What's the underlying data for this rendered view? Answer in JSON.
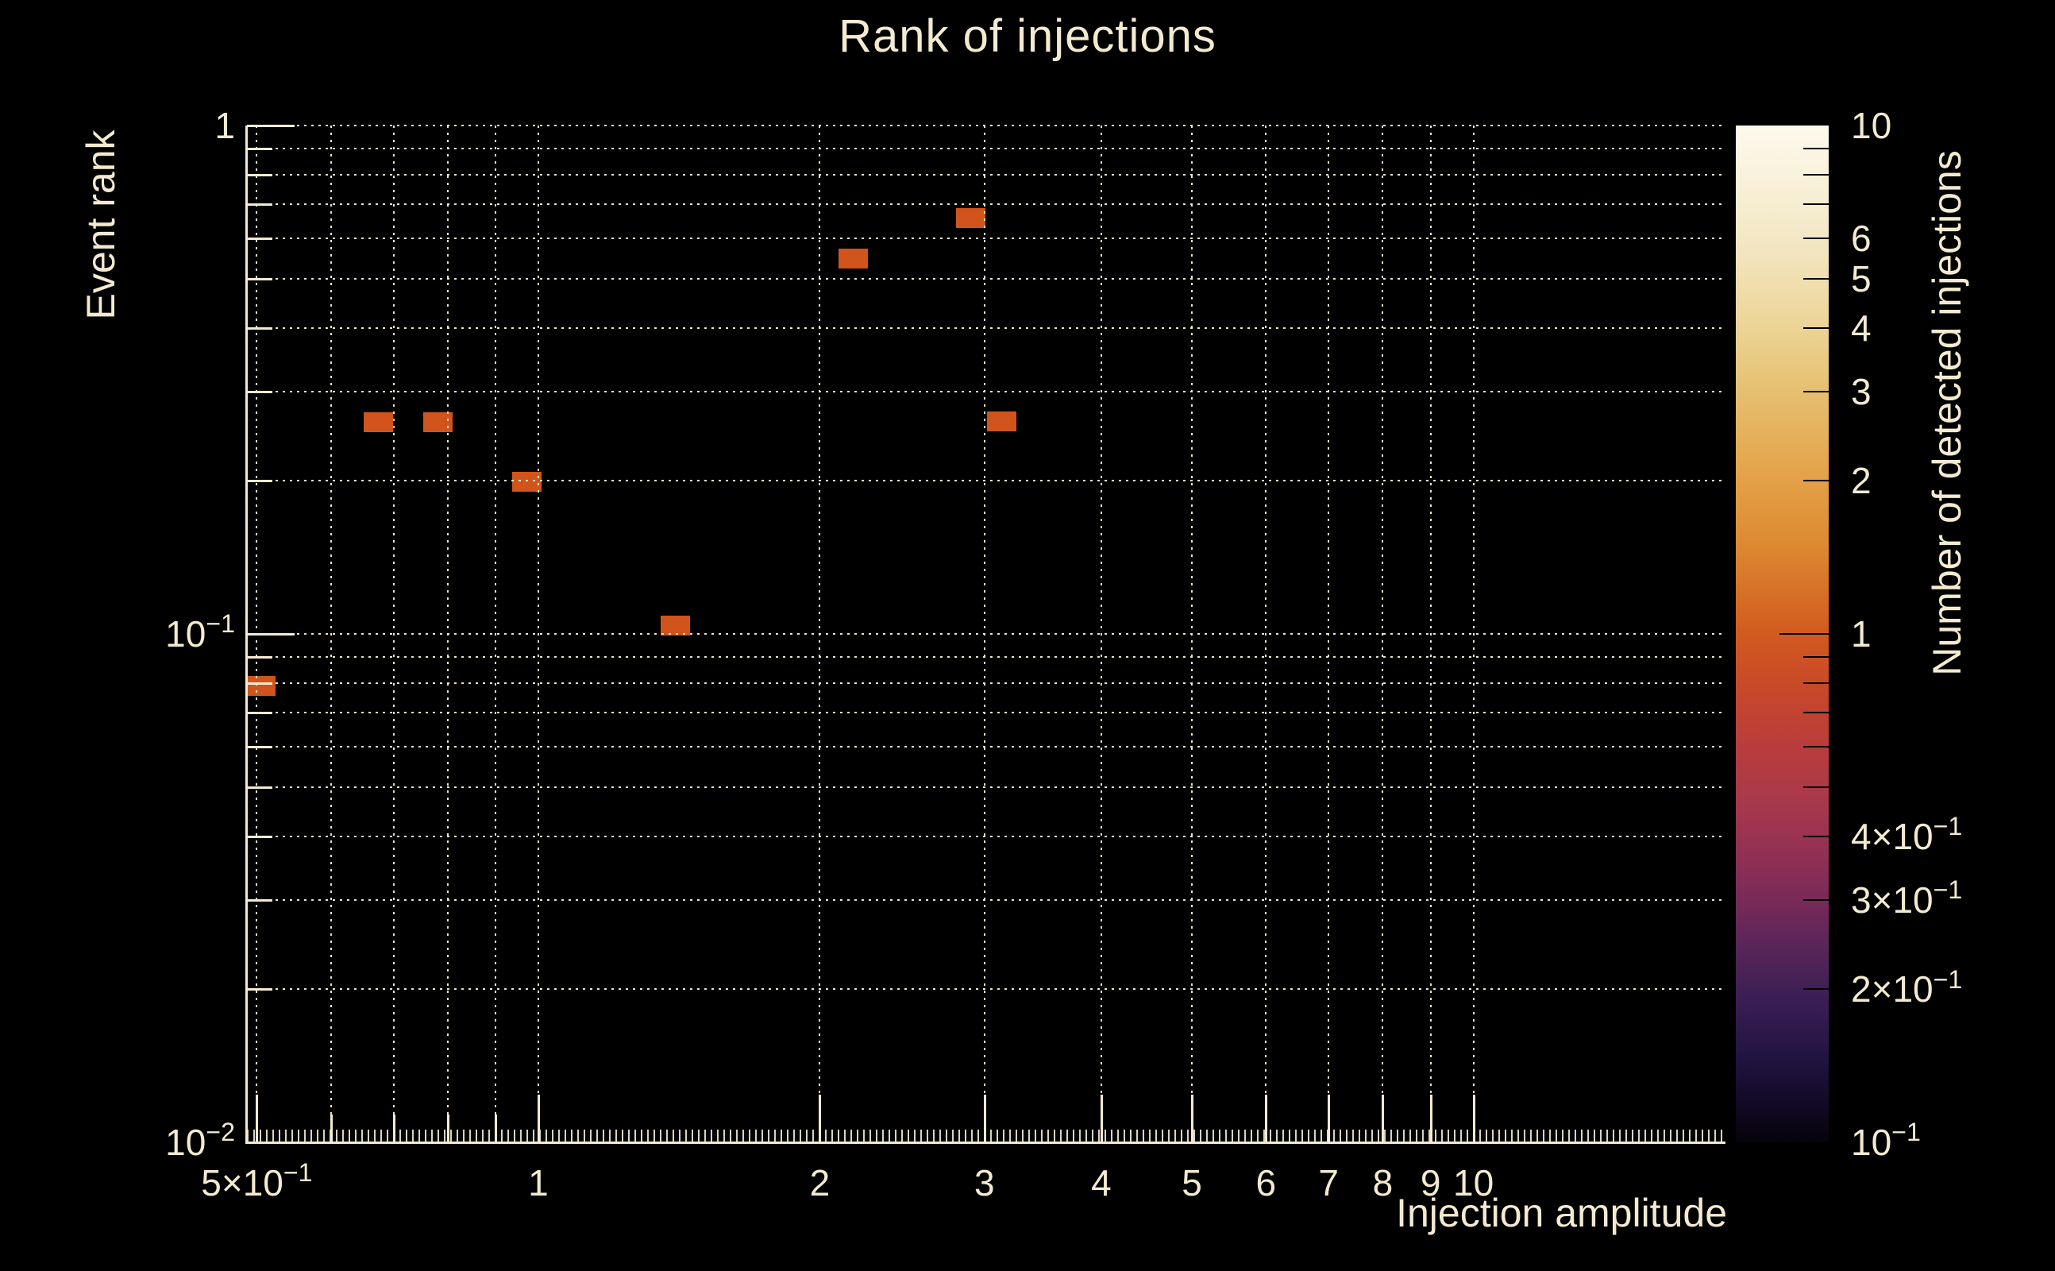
{
  "title": "Rank of injections",
  "colors": {
    "background": "#000000",
    "text": "#f3ead0",
    "grid": "#ece3c8",
    "bin": "#d0541b"
  },
  "chart_data": {
    "type": "heatmap",
    "title": "Rank of injections",
    "xlabel": "Injection amplitude",
    "ylabel": "Event rank",
    "x_scale": "log",
    "y_scale": "log",
    "xlim": [
      0.488,
      18.6
    ],
    "ylim": [
      0.01,
      1
    ],
    "grid": "dotted",
    "x_ticks": [
      {
        "v": 0.5,
        "label": "5×10⁻¹"
      },
      {
        "v": 1,
        "label": "1"
      },
      {
        "v": 2,
        "label": "2"
      },
      {
        "v": 3,
        "label": "3"
      },
      {
        "v": 4,
        "label": "4"
      },
      {
        "v": 5,
        "label": "5"
      },
      {
        "v": 6,
        "label": "6"
      },
      {
        "v": 7,
        "label": "7"
      },
      {
        "v": 8,
        "label": "8"
      },
      {
        "v": 9,
        "label": "9"
      },
      {
        "v": 10,
        "label": "10"
      }
    ],
    "x_minor_ticks": [
      0.6,
      0.7,
      0.8,
      0.9
    ],
    "x_gridlines": [
      0.5,
      0.6,
      0.7,
      0.8,
      0.9,
      1,
      2,
      3,
      4,
      5,
      6,
      7,
      8,
      9,
      10
    ],
    "y_ticks": [
      {
        "v": 1,
        "label": "1"
      },
      {
        "v": 0.1,
        "label": "10⁻¹"
      },
      {
        "v": 0.01,
        "label": "10⁻²"
      }
    ],
    "y_minor_ticks": [
      0.9,
      0.8,
      0.7,
      0.6,
      0.5,
      0.4,
      0.3,
      0.2,
      0.09,
      0.08,
      0.07,
      0.06,
      0.05,
      0.04,
      0.03,
      0.02
    ],
    "y_gridlines": [
      1,
      0.9,
      0.8,
      0.7,
      0.6,
      0.5,
      0.4,
      0.3,
      0.2,
      0.1,
      0.09,
      0.08,
      0.07,
      0.06,
      0.05,
      0.04,
      0.03,
      0.02
    ],
    "points": [
      {
        "x": 0.505,
        "y": 0.079,
        "count": 1
      },
      {
        "x": 0.675,
        "y": 0.261,
        "count": 1
      },
      {
        "x": 0.781,
        "y": 0.261,
        "count": 1
      },
      {
        "x": 0.973,
        "y": 0.199,
        "count": 1
      },
      {
        "x": 1.4,
        "y": 0.104,
        "count": 1
      },
      {
        "x": 2.17,
        "y": 0.547,
        "count": 1
      },
      {
        "x": 2.9,
        "y": 0.657,
        "count": 1
      },
      {
        "x": 3.13,
        "y": 0.262,
        "count": 1
      }
    ],
    "colorbar": {
      "label": "Number of detected injections",
      "scale": "log",
      "range": [
        0.1,
        10
      ],
      "tick_labels": [
        {
          "v": 10,
          "label": "10"
        },
        {
          "v": 6,
          "label": "6"
        },
        {
          "v": 5,
          "label": "5"
        },
        {
          "v": 4,
          "label": "4"
        },
        {
          "v": 3,
          "label": "3"
        },
        {
          "v": 2,
          "label": "2"
        },
        {
          "v": 1,
          "label": "1"
        },
        {
          "v": 0.4,
          "label": "4×10⁻¹"
        },
        {
          "v": 0.3,
          "label": "3×10⁻¹"
        },
        {
          "v": 0.2,
          "label": "2×10⁻¹"
        },
        {
          "v": 0.1,
          "label": "10⁻¹"
        }
      ],
      "major_ticks": [
        1
      ],
      "minor_ticks": [
        9,
        8,
        7,
        6,
        5,
        4,
        3,
        2,
        0.9,
        0.8,
        0.7,
        0.6,
        0.5,
        0.4,
        0.3,
        0.2
      ],
      "gradient": [
        {
          "pos": 0,
          "color": "#fdf9ec"
        },
        {
          "pos": 4.8,
          "color": "#f9f2dc"
        },
        {
          "pos": 11.1,
          "color": "#f3e7c5"
        },
        {
          "pos": 15.1,
          "color": "#f0dfb0"
        },
        {
          "pos": 19.9,
          "color": "#ecd495"
        },
        {
          "pos": 26.2,
          "color": "#e6bf70"
        },
        {
          "pos": 35.1,
          "color": "#e3a046"
        },
        {
          "pos": 41.3,
          "color": "#dd8931"
        },
        {
          "pos": 50,
          "color": "#d25a1f"
        },
        {
          "pos": 54.8,
          "color": "#c94a28"
        },
        {
          "pos": 61.1,
          "color": "#b93c3c"
        },
        {
          "pos": 65,
          "color": "#ad3a48"
        },
        {
          "pos": 69.9,
          "color": "#9b3352"
        },
        {
          "pos": 76.2,
          "color": "#792a58"
        },
        {
          "pos": 80.1,
          "color": "#5e2659"
        },
        {
          "pos": 85,
          "color": "#3f2056"
        },
        {
          "pos": 91.2,
          "color": "#231544"
        },
        {
          "pos": 96,
          "color": "#120a26"
        },
        {
          "pos": 100,
          "color": "#060309"
        }
      ]
    }
  }
}
